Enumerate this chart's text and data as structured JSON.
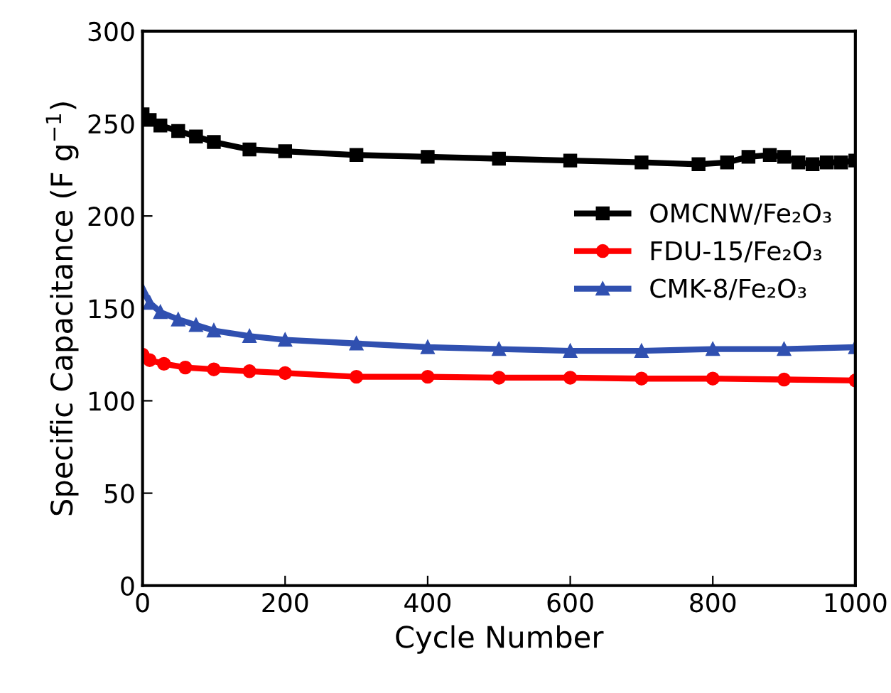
{
  "chart_data": {
    "type": "line",
    "xlabel": "Cycle Number",
    "ylabel": "Specific Capacitance (F g$^{−1}$)",
    "xlim": [
      0,
      1000
    ],
    "ylim": [
      0,
      300
    ],
    "xticks": [
      0,
      200,
      400,
      600,
      800,
      1000
    ],
    "yticks": [
      0,
      50,
      100,
      150,
      200,
      250,
      300
    ],
    "grid": false,
    "legend": "right",
    "series": [
      {
        "name": "OMCNW/Fe₂O₃",
        "color": "#000000",
        "marker": "square",
        "x": [
          0,
          10,
          25,
          50,
          75,
          100,
          150,
          200,
          300,
          400,
          500,
          600,
          700,
          780,
          820,
          850,
          880,
          900,
          920,
          940,
          960,
          980,
          1000
        ],
        "values": [
          255,
          252,
          249,
          246,
          243,
          240,
          236,
          235,
          233,
          232,
          231,
          230,
          229,
          228,
          229,
          232,
          233,
          232,
          229,
          228,
          229,
          229,
          230
        ]
      },
      {
        "name": "FDU-15/Fe₂O₃",
        "color": "#ff0000",
        "marker": "circle",
        "x": [
          0,
          10,
          30,
          60,
          100,
          150,
          200,
          300,
          400,
          500,
          600,
          700,
          800,
          900,
          1000
        ],
        "values": [
          125,
          122,
          120,
          118,
          117,
          116,
          115,
          113,
          113,
          112.5,
          112.5,
          112,
          112,
          111.5,
          111
        ]
      },
      {
        "name": "CMK-8/Fe₂O₃",
        "color": "#3050b0",
        "marker": "triangle",
        "x": [
          0,
          10,
          25,
          50,
          75,
          100,
          150,
          200,
          300,
          400,
          500,
          600,
          700,
          800,
          900,
          1000
        ],
        "values": [
          160,
          153,
          148,
          144,
          141,
          138,
          135,
          133,
          131,
          129,
          128,
          127,
          127,
          128,
          128,
          129
        ]
      }
    ]
  }
}
